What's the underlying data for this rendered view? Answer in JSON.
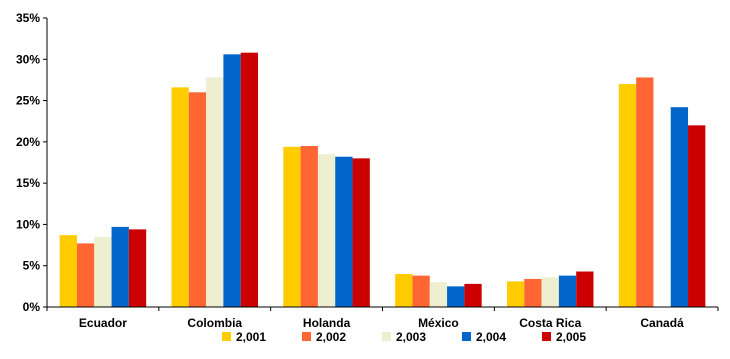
{
  "chart_data": {
    "type": "bar",
    "title": "",
    "xlabel": "",
    "ylabel": "",
    "ylim": [
      0,
      35
    ],
    "y_ticks": [
      "0%",
      "5%",
      "10%",
      "15%",
      "20%",
      "25%",
      "30%",
      "35%"
    ],
    "grid": false,
    "legend_position": "bottom",
    "categories": [
      "Ecuador",
      "Colombia",
      "Holanda",
      "México",
      "Costa Rica",
      "Canadá"
    ],
    "series": [
      {
        "name": "2,001",
        "color": "#FFCC00",
        "values": [
          8.7,
          26.6,
          19.4,
          4.0,
          3.1,
          27.0
        ]
      },
      {
        "name": "2,002",
        "color": "#FF6633",
        "values": [
          7.7,
          26.0,
          19.5,
          3.8,
          3.4,
          27.8
        ]
      },
      {
        "name": "2,003",
        "color": "#EEEED0",
        "values": [
          8.5,
          27.8,
          18.5,
          3.0,
          3.6,
          0
        ]
      },
      {
        "name": "2,004",
        "color": "#0066CC",
        "values": [
          9.7,
          30.6,
          18.2,
          2.5,
          3.8,
          24.2
        ]
      },
      {
        "name": "2,005",
        "color": "#CC0000",
        "values": [
          9.4,
          30.8,
          18.0,
          2.8,
          4.3,
          22.0
        ]
      }
    ]
  }
}
